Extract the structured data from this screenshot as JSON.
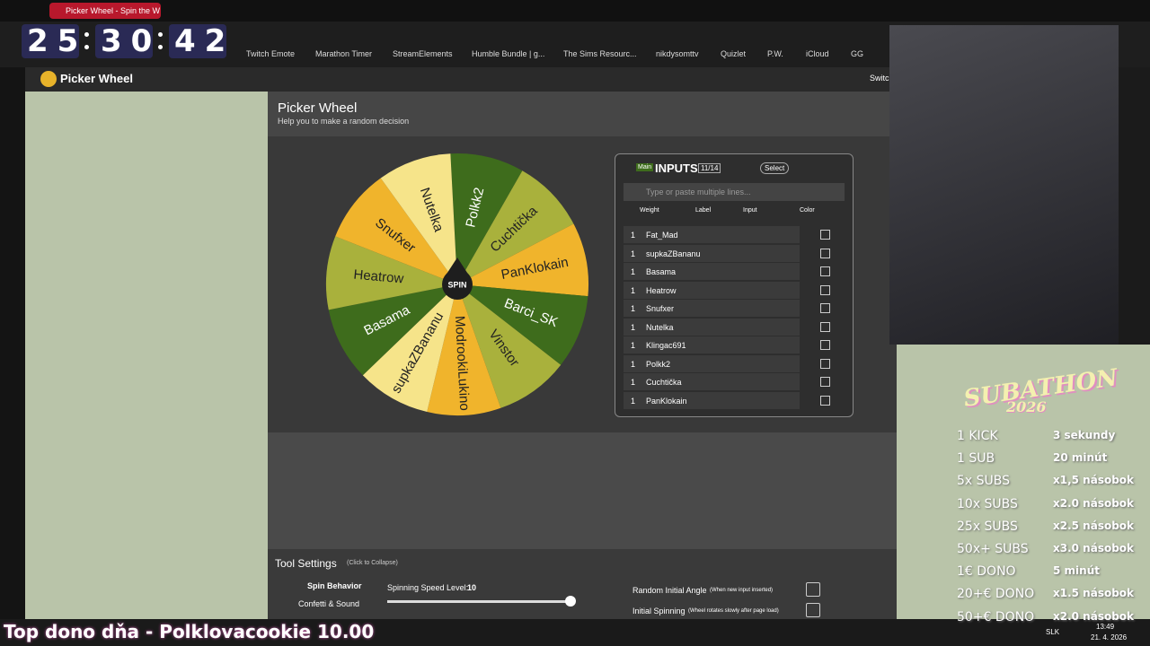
{
  "browser": {
    "tab_title": "Picker Wheel - Spin the W",
    "timer": {
      "hours": "25",
      "minutes": "30",
      "seconds": "42"
    },
    "bookmarks": [
      "Twitch Emote",
      "Marathon Timer",
      "StreamElements",
      "Humble Bundle | g...",
      "The Sims Resourc...",
      "nikdysomttv",
      "Quizlet",
      "P.W.",
      "iCloud",
      "GG"
    ]
  },
  "site": {
    "logo": "Picker Wheel",
    "switch": "Switc"
  },
  "page": {
    "title": "Picker Wheel",
    "subtitle": "Help you to make a random decision"
  },
  "wheel": {
    "center": "SPIN",
    "segments": [
      {
        "label": "Polkk2",
        "color": "#3e6c1c"
      },
      {
        "label": "Cuchtička",
        "color": "#a9b13c"
      },
      {
        "label": "PanKlokain",
        "color": "#f0b42c"
      },
      {
        "label": "Barci_SK",
        "color": "#3e6c1c"
      },
      {
        "label": "Vinstor",
        "color": "#a9b13c"
      },
      {
        "label": "ModrookiLukino",
        "color": "#f0b42c"
      },
      {
        "label": "supkaZBananu",
        "color": "#f6e48a"
      },
      {
        "label": "Basama",
        "color": "#3e6c1c"
      },
      {
        "label": "Heatrow",
        "color": "#a9b13c"
      },
      {
        "label": "Snufxer",
        "color": "#f0b42c"
      },
      {
        "label": "Nutelka",
        "color": "#f6e48a"
      }
    ]
  },
  "inputs": {
    "tag": "Main",
    "title": "INPUTS",
    "count": "11/14",
    "select": "Select",
    "placeholder": "Type or paste multiple lines...",
    "columns": [
      "Weight",
      "Label",
      "Input",
      "Color"
    ],
    "rows": [
      {
        "weight": "1",
        "label": "Fat_Mad"
      },
      {
        "weight": "1",
        "label": "supkaZBananu"
      },
      {
        "weight": "1",
        "label": "Basama"
      },
      {
        "weight": "1",
        "label": "Heatrow"
      },
      {
        "weight": "1",
        "label": "Snufxer"
      },
      {
        "weight": "1",
        "label": "Nutelka"
      },
      {
        "weight": "1",
        "label": "Klingac691"
      },
      {
        "weight": "1",
        "label": "Polkk2"
      },
      {
        "weight": "1",
        "label": "Cuchtička"
      },
      {
        "weight": "1",
        "label": "PanKlokain"
      }
    ]
  },
  "settings": {
    "title": "Tool Settings",
    "hint": "(Click to Collapse)",
    "spin_behavior": "Spin Behavior",
    "confetti": "Confetti & Sound",
    "speed_label": "Spinning Speed Level:",
    "speed_value": "10",
    "random_angle": "Random Initial Angle",
    "random_angle_note": "(When new input inserted)",
    "initial_spin": "Initial Spinning",
    "initial_spin_note": "(Wheel rotates slowly after page load)"
  },
  "subathon": {
    "title": "SUBATHON",
    "year": "2026",
    "rows": [
      [
        "1 KICK",
        "3 sekundy"
      ],
      [
        "1 SUB",
        "20 minút"
      ],
      [
        "5x SUBS",
        "x1,5 násobok"
      ],
      [
        "10x SUBS",
        "x2.0 násobok"
      ],
      [
        "25x SUBS",
        "x2.5 násobok"
      ],
      [
        "50x+ SUBS",
        "x3.0 násobok"
      ],
      [
        "1€ DONO",
        "5 minút"
      ],
      [
        "20+€ DONO",
        "x1.5 násobok"
      ],
      [
        "50+€ DONO",
        "x2.0 násobok"
      ]
    ]
  },
  "taskbar": {
    "ticker": "Top dono dňa - Polklovacookie 10.00",
    "lang": "SLK",
    "time": "13:49",
    "date": "21. 4. 2026"
  }
}
